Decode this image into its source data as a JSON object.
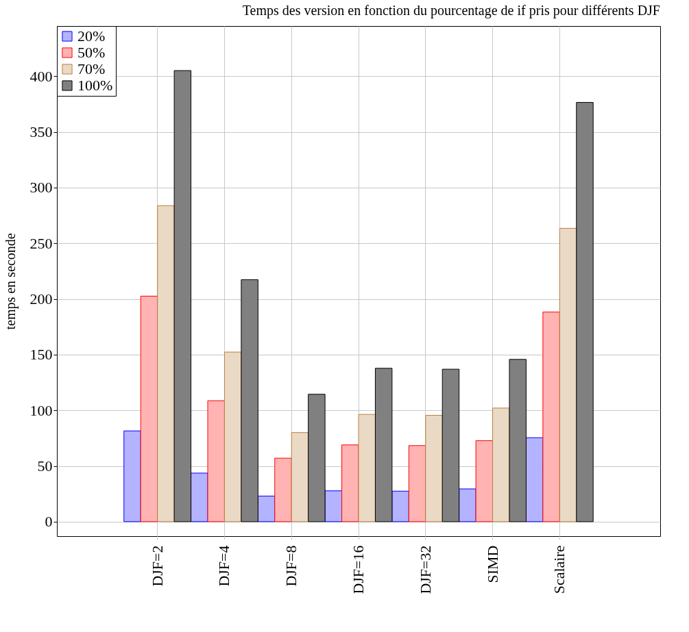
{
  "chart_data": {
    "type": "bar",
    "title": "Temps des version en fonction du pourcentage de if pris pour différents DJF",
    "ylabel": "temps en seconde",
    "categories": [
      "DJF=2",
      "DJF=4",
      "DJF=8",
      "DJF=16",
      "DJF=32",
      "SIMD",
      "Scalaire"
    ],
    "series": [
      {
        "name": "20%",
        "color": "#b3b3ff",
        "values": [
          81.5,
          43.6,
          23,
          27.7,
          27.4,
          29.4,
          75.4
        ]
      },
      {
        "name": "50%",
        "color": "#ffb3b3",
        "values": [
          202.5,
          108.6,
          57,
          68.9,
          68.3,
          72.7,
          188.2
        ]
      },
      {
        "name": "70%",
        "color": "#ead9c5",
        "values": [
          283.7,
          152.3,
          80,
          96.3,
          95.5,
          102,
          263.4
        ]
      },
      {
        "name": "100%",
        "color": "#808080",
        "values": [
          405,
          217.3,
          114.4,
          137.7,
          136.9,
          145.7,
          376.4
        ]
      }
    ],
    "ylim": [
      -13,
      445
    ],
    "yticks": [
      0,
      50,
      100,
      150,
      200,
      250,
      300,
      350,
      400
    ],
    "grid": true,
    "legend": "top left"
  }
}
